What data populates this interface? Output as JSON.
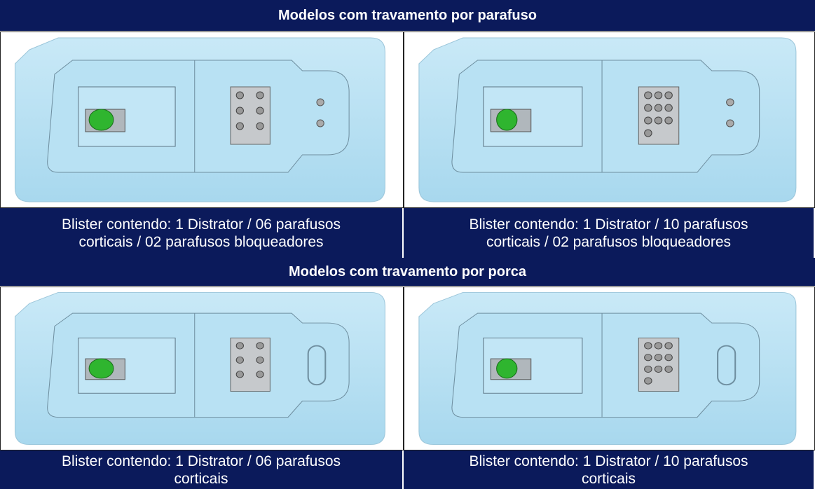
{
  "sections": [
    {
      "title": "Modelos com travamento por parafuso",
      "items": [
        {
          "caption": [
            "Blister contendo: 1 Distrator / 06 parafusos",
            "corticais / 02 parafusos bloqueadores"
          ]
        },
        {
          "caption": [
            "Blister contendo: 1 Distrator / 10 parafusos",
            "corticais / 02 parafusos bloqueadores"
          ]
        }
      ]
    },
    {
      "title": "Modelos com travamento por porca",
      "items": [
        {
          "caption": [
            "Blister contendo: 1 Distrator / 06 parafusos",
            "corticais"
          ]
        },
        {
          "caption": [
            "Blister contendo: 1 Distrator / 10 parafusos",
            "corticais"
          ]
        }
      ]
    }
  ]
}
